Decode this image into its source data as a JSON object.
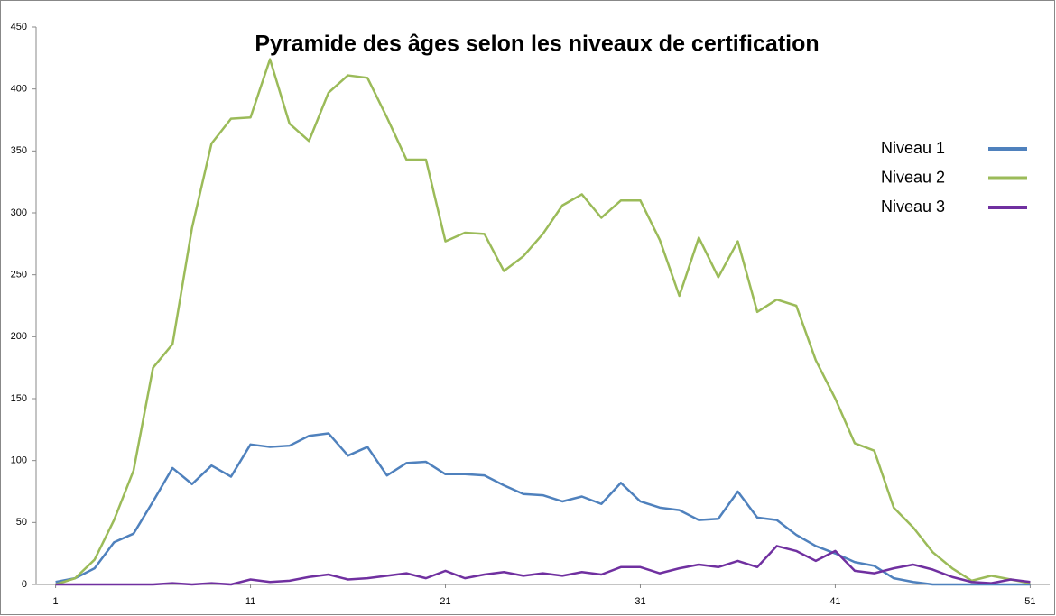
{
  "chart_data": {
    "type": "line",
    "title": "Pyramide des âges selon les niveaux de certification",
    "x": [
      1,
      2,
      3,
      4,
      5,
      6,
      7,
      8,
      9,
      10,
      11,
      12,
      13,
      14,
      15,
      16,
      17,
      18,
      19,
      20,
      21,
      22,
      23,
      24,
      25,
      26,
      27,
      28,
      29,
      30,
      31,
      32,
      33,
      34,
      35,
      36,
      37,
      38,
      39,
      40,
      41,
      42,
      43,
      44,
      45,
      46,
      47,
      48,
      49,
      50,
      51
    ],
    "series": [
      {
        "name": "Niveau 1",
        "color": "#4f81bd",
        "values": [
          2,
          5,
          13,
          34,
          41,
          67,
          94,
          81,
          96,
          87,
          113,
          111,
          112,
          120,
          122,
          104,
          111,
          88,
          98,
          99,
          89,
          89,
          88,
          80,
          73,
          72,
          67,
          71,
          65,
          82,
          67,
          62,
          60,
          52,
          53,
          75,
          54,
          52,
          40,
          31,
          25,
          18,
          15,
          5,
          2,
          0,
          0,
          0,
          0,
          0,
          0
        ]
      },
      {
        "name": "Niveau 2",
        "color": "#9bbb59",
        "values": [
          0,
          5,
          20,
          52,
          92,
          175,
          194,
          288,
          356,
          376,
          377,
          424,
          372,
          358,
          397,
          411,
          409,
          377,
          343,
          343,
          277,
          284,
          283,
          253,
          265,
          283,
          306,
          315,
          296,
          310,
          310,
          278,
          233,
          280,
          248,
          277,
          220,
          230,
          225,
          181,
          150,
          114,
          108,
          62,
          46,
          26,
          13,
          3,
          7,
          4,
          1
        ]
      },
      {
        "name": "Niveau 3",
        "color": "#7030a0",
        "values": [
          0,
          0,
          0,
          0,
          0,
          0,
          1,
          0,
          1,
          0,
          4,
          2,
          3,
          6,
          8,
          4,
          5,
          7,
          9,
          5,
          11,
          5,
          8,
          10,
          7,
          9,
          7,
          10,
          8,
          14,
          14,
          9,
          13,
          16,
          14,
          19,
          14,
          31,
          27,
          19,
          27,
          11,
          9,
          13,
          16,
          12,
          6,
          2,
          1,
          4,
          2
        ]
      }
    ],
    "xlim": [
      0,
      52
    ],
    "xticks": [
      1,
      11,
      21,
      31,
      41,
      51
    ],
    "ylim": [
      0,
      450
    ],
    "yticks": [
      0,
      50,
      100,
      150,
      200,
      250,
      300,
      350,
      400,
      450
    ],
    "grid": false,
    "legend": "right"
  }
}
